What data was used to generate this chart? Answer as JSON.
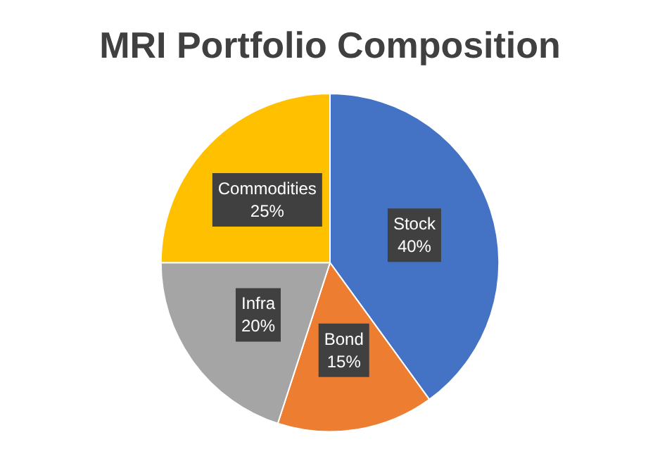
{
  "chart_data": {
    "type": "pie",
    "title": "MRI Portfolio Composition",
    "categories": [
      "Stock",
      "Bond",
      "Infra",
      "Commodities"
    ],
    "values": [
      40,
      15,
      20,
      25
    ],
    "value_labels": [
      "40%",
      "15%",
      "20%",
      "25%"
    ],
    "colors": [
      "#4472c4",
      "#ed7d31",
      "#a5a5a5",
      "#ffc000"
    ],
    "legend": false
  }
}
